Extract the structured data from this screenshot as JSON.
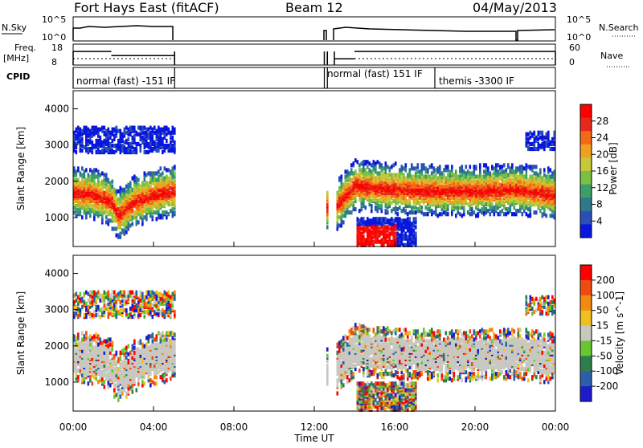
{
  "header": {
    "station": "Fort Hays East (fitACF)",
    "beam": "Beam 12",
    "date": "04/May/2013"
  },
  "noise_panel": {
    "left_label": "N.Sky",
    "right_label": "N.Search",
    "ticks": [
      "10^5",
      "10^0"
    ],
    "right_ticks": [
      "10^5",
      "10^0"
    ]
  },
  "freq_panel": {
    "label_line1": "Freq.",
    "label_line2": "[MHz]",
    "ticks": [
      "18",
      "8"
    ],
    "right_label": "Nave",
    "right_ticks": [
      "60",
      "0"
    ]
  },
  "cpid_panel": {
    "label": "CPID",
    "modes": [
      "normal (fast) -151 IF",
      "normal (fast) 151 IF",
      "themis -3300 IF"
    ]
  },
  "x_axis": {
    "title": "Time UT",
    "ticks": [
      "00:00",
      "04:00",
      "08:00",
      "12:00",
      "16:00",
      "20:00",
      "00:00"
    ]
  },
  "power_panel": {
    "ylabel": "Slant Range [km]",
    "yticks": [
      "1000",
      "2000",
      "3000",
      "4000"
    ],
    "colorbar_label": "Power [dB]",
    "colorbar_ticks": [
      "28",
      "24",
      "20",
      "16",
      "12",
      "8",
      "4"
    ],
    "colors": [
      "#0a16e0",
      "#2a4fb8",
      "#2e7a8a",
      "#3aa06a",
      "#7ac043",
      "#c6c83a",
      "#f0a020",
      "#f46a14",
      "#e8281a",
      "#ff0000"
    ]
  },
  "velocity_panel": {
    "ylabel": "Slant Range [km]",
    "yticks": [
      "1000",
      "2000",
      "3000",
      "4000"
    ],
    "colorbar_label": "Velocity [m s^-1]",
    "colorbar_ticks": [
      "200",
      "100",
      "50",
      "15",
      "-15",
      "-50",
      "-100",
      "-200"
    ],
    "colors": [
      "#1c1ccc",
      "#2b5fa8",
      "#2f7d4c",
      "#66c82e",
      "#c8c8c0",
      "#f0c020",
      "#f08a10",
      "#f04a10",
      "#ff0000"
    ]
  },
  "chart_data": {
    "type": "heatmap",
    "x_range_hours": [
      0,
      24
    ],
    "y_range_km": [
      200,
      4500
    ],
    "operating_intervals_hours": [
      [
        0,
        5.05
      ],
      [
        12.5,
        12.65
      ],
      [
        13.0,
        24
      ]
    ],
    "mode_intervals_hours": [
      {
        "mode": "normal (fast) -151 IF",
        "start": 0,
        "end": 12.65
      },
      {
        "mode": "normal (fast) 151 IF",
        "start": 12.65,
        "end": 18.0
      },
      {
        "mode": "themis -3300 IF",
        "start": 18.0,
        "end": 24
      }
    ],
    "freq_mhz": [
      {
        "start": 0,
        "end": 1.9,
        "value": 14.5
      },
      {
        "start": 1.9,
        "end": 5.05,
        "value": 12.5
      },
      {
        "start": 13.0,
        "end": 14.0,
        "value": 11.0
      },
      {
        "start": 14.0,
        "end": 24,
        "value": 14.5
      }
    ],
    "main_echo_band_km": [
      {
        "t": 0.0,
        "r": 1700
      },
      {
        "t": 1.0,
        "r": 1650
      },
      {
        "t": 1.8,
        "r": 1500
      },
      {
        "t": 2.2,
        "r": 1100
      },
      {
        "t": 3.0,
        "r": 1450
      },
      {
        "t": 4.0,
        "r": 1650
      },
      {
        "t": 5.0,
        "r": 1750
      },
      {
        "t": 13.0,
        "r": 1300
      },
      {
        "t": 14.0,
        "r": 1900
      },
      {
        "t": 15.0,
        "r": 1850
      },
      {
        "t": 16.0,
        "r": 1800
      },
      {
        "t": 18.0,
        "r": 1750
      },
      {
        "t": 20.0,
        "r": 1750
      },
      {
        "t": 22.0,
        "r": 1800
      },
      {
        "t": 24.0,
        "r": 1650
      }
    ]
  }
}
